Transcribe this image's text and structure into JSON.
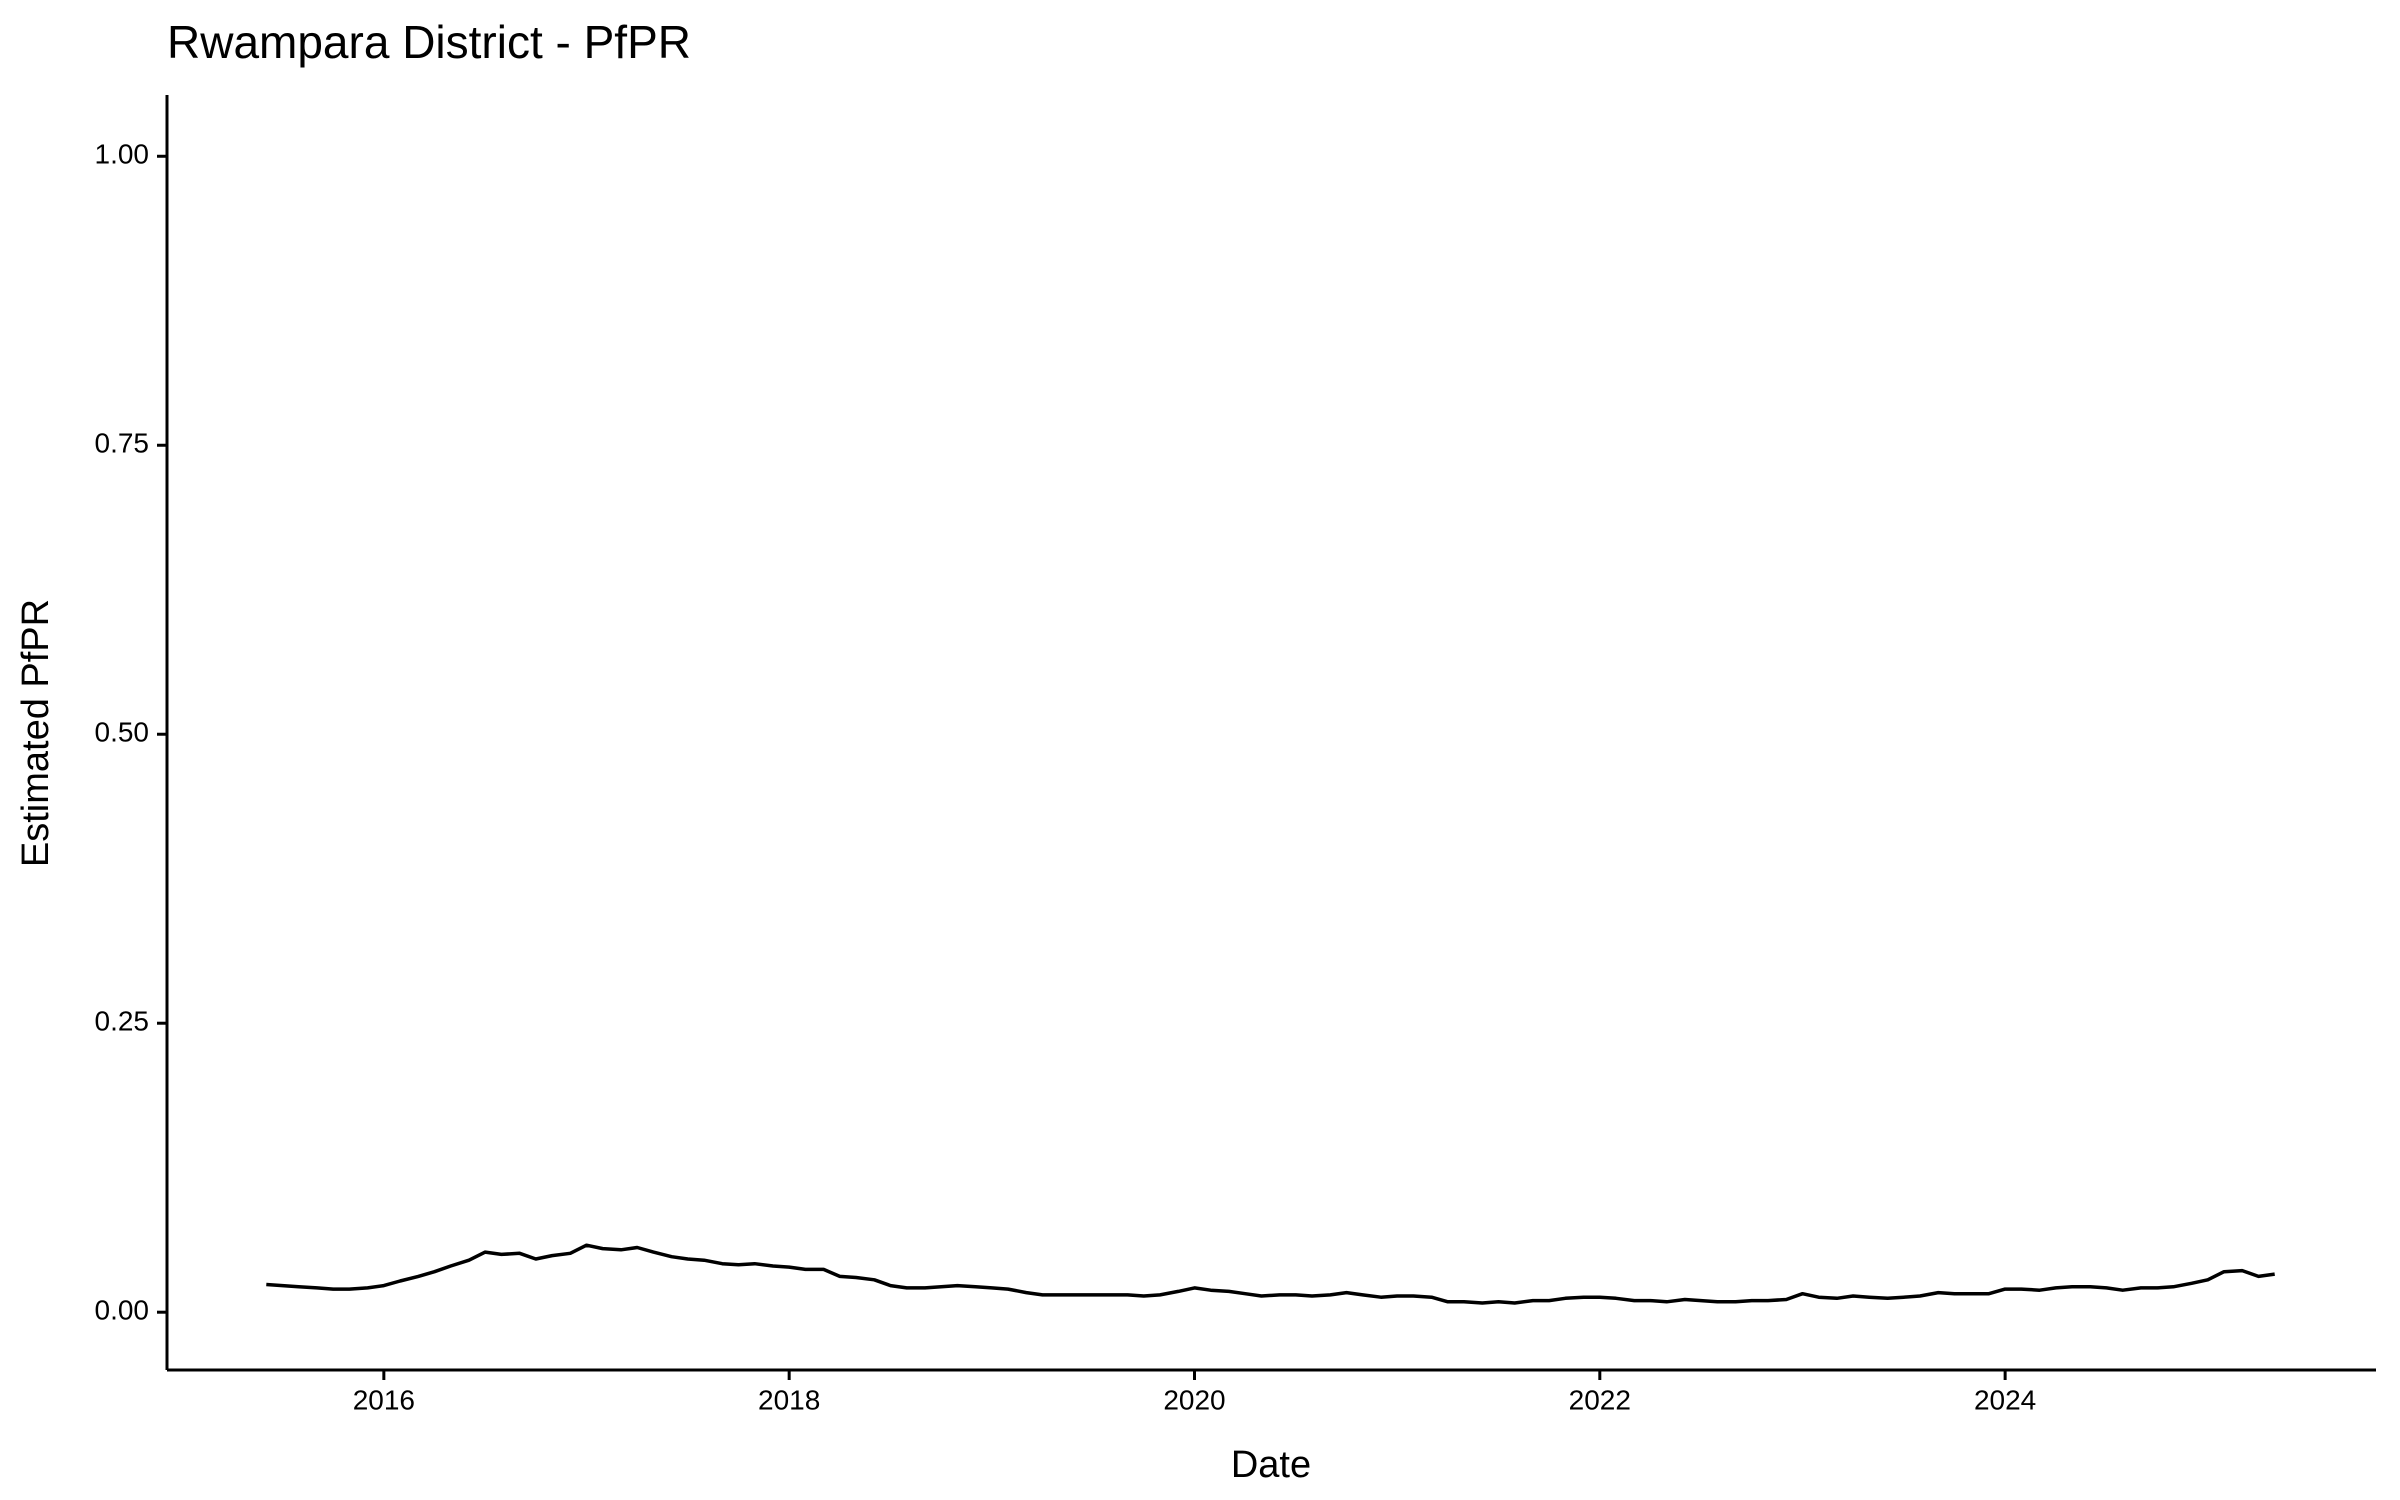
{
  "chart_data": {
    "type": "line",
    "title": "Rwampara District - PfPR",
    "x_label": "Date",
    "y_label": "Estimated PfPR",
    "x": [
      2015.42,
      2015.5,
      2015.58,
      2015.67,
      2015.75,
      2015.83,
      2015.92,
      2016.0,
      2016.08,
      2016.17,
      2016.25,
      2016.33,
      2016.42,
      2016.5,
      2016.58,
      2016.67,
      2016.75,
      2016.83,
      2016.92,
      2017.0,
      2017.08,
      2017.17,
      2017.25,
      2017.33,
      2017.42,
      2017.5,
      2017.58,
      2017.67,
      2017.75,
      2017.83,
      2017.92,
      2018.0,
      2018.08,
      2018.17,
      2018.25,
      2018.33,
      2018.42,
      2018.5,
      2018.58,
      2018.67,
      2018.75,
      2018.83,
      2018.92,
      2019.0,
      2019.08,
      2019.17,
      2019.25,
      2019.33,
      2019.42,
      2019.5,
      2019.58,
      2019.67,
      2019.75,
      2019.83,
      2019.92,
      2020.0,
      2020.08,
      2020.17,
      2020.25,
      2020.33,
      2020.42,
      2020.5,
      2020.58,
      2020.67,
      2020.75,
      2020.83,
      2020.92,
      2021.0,
      2021.08,
      2021.17,
      2021.25,
      2021.33,
      2021.42,
      2021.5,
      2021.58,
      2021.67,
      2021.75,
      2021.83,
      2021.92,
      2022.0,
      2022.08,
      2022.17,
      2022.25,
      2022.33,
      2022.42,
      2022.5,
      2022.58,
      2022.67,
      2022.75,
      2022.83,
      2022.92,
      2023.0,
      2023.08,
      2023.17,
      2023.25,
      2023.33,
      2023.42,
      2023.5,
      2023.58,
      2023.67,
      2023.75,
      2023.83,
      2023.92,
      2024.0,
      2024.08,
      2024.17,
      2024.25,
      2024.33,
      2024.42,
      2024.5,
      2024.58,
      2024.67,
      2024.75,
      2024.83,
      2024.92,
      2025.0,
      2025.08,
      2025.17,
      2025.25,
      2025.33
    ],
    "series": [
      {
        "name": "PfPR",
        "color": "#000000",
        "values": [
          0.024,
          0.023,
          0.022,
          0.021,
          0.02,
          0.02,
          0.021,
          0.023,
          0.027,
          0.031,
          0.035,
          0.04,
          0.045,
          0.052,
          0.05,
          0.051,
          0.046,
          0.049,
          0.051,
          0.058,
          0.055,
          0.054,
          0.056,
          0.052,
          0.048,
          0.046,
          0.045,
          0.042,
          0.041,
          0.042,
          0.04,
          0.039,
          0.037,
          0.037,
          0.031,
          0.03,
          0.028,
          0.023,
          0.021,
          0.021,
          0.022,
          0.023,
          0.022,
          0.021,
          0.02,
          0.017,
          0.015,
          0.015,
          0.015,
          0.015,
          0.015,
          0.015,
          0.014,
          0.015,
          0.018,
          0.021,
          0.019,
          0.018,
          0.016,
          0.014,
          0.015,
          0.015,
          0.014,
          0.015,
          0.017,
          0.015,
          0.013,
          0.014,
          0.014,
          0.013,
          0.009,
          0.009,
          0.008,
          0.009,
          0.008,
          0.01,
          0.01,
          0.012,
          0.013,
          0.013,
          0.012,
          0.01,
          0.01,
          0.009,
          0.011,
          0.01,
          0.009,
          0.009,
          0.01,
          0.01,
          0.011,
          0.016,
          0.013,
          0.012,
          0.014,
          0.013,
          0.012,
          0.013,
          0.014,
          0.017,
          0.016,
          0.016,
          0.016,
          0.02,
          0.02,
          0.019,
          0.021,
          0.022,
          0.022,
          0.021,
          0.019,
          0.021,
          0.021,
          0.022,
          0.025,
          0.028,
          0.035,
          0.036,
          0.031,
          0.033
        ]
      }
    ],
    "xlim": [
      2014.93,
      2025.83
    ],
    "xticks": [
      2016,
      2018,
      2020,
      2022,
      2024
    ],
    "ylim": [
      -0.05,
      1.053
    ],
    "yticks": [
      {
        "value": 0,
        "label": "0.00"
      },
      {
        "value": 0.25,
        "label": "0.25"
      },
      {
        "value": 0.5,
        "label": "0.50"
      },
      {
        "value": 0.75,
        "label": "0.75"
      },
      {
        "value": 1,
        "label": "1.00"
      }
    ]
  }
}
